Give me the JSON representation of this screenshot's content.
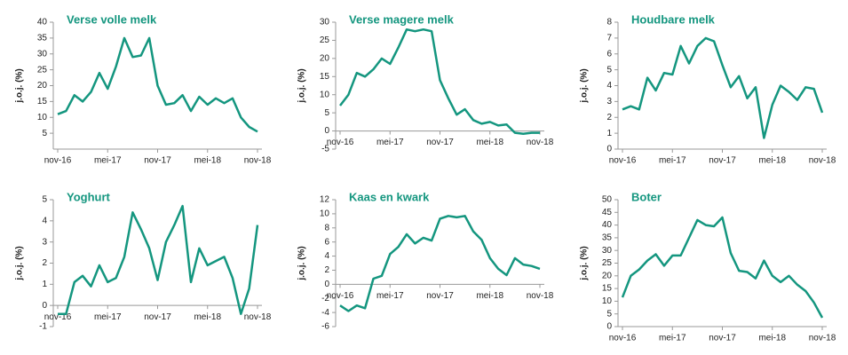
{
  "chart_data": [
    {
      "type": "line",
      "title": "Verse volle melk",
      "ylabel": "j.o.j. (%)",
      "color": "#14967f",
      "categories": [
        "nov-16",
        null,
        null,
        null,
        null,
        null,
        "mei-17",
        null,
        null,
        null,
        null,
        null,
        "nov-17",
        null,
        null,
        null,
        null,
        null,
        "mei-18",
        null,
        null,
        null,
        null,
        null,
        "nov-18"
      ],
      "values": [
        11,
        12,
        17,
        15,
        18,
        24,
        19,
        26,
        35,
        29,
        29.5,
        35,
        20,
        14,
        14.5,
        17,
        12,
        16.5,
        14,
        16,
        14.5,
        16,
        10,
        7,
        5.5
      ],
      "ylim": [
        0,
        40
      ],
      "yticks": [
        5,
        10,
        15,
        20,
        25,
        30,
        35,
        40
      ]
    },
    {
      "type": "line",
      "title": "Verse magere melk",
      "ylabel": "j.o.j. (%)",
      "color": "#14967f",
      "categories": [
        "nov-16",
        null,
        null,
        null,
        null,
        null,
        "mei-17",
        null,
        null,
        null,
        null,
        null,
        "nov-17",
        null,
        null,
        null,
        null,
        null,
        "mei-18",
        null,
        null,
        null,
        null,
        null,
        "nov-18"
      ],
      "values": [
        7,
        10,
        16,
        15,
        17,
        20,
        18.5,
        23,
        28,
        27.5,
        28,
        27.5,
        14,
        9,
        4.5,
        6,
        3,
        2,
        2.5,
        1.5,
        1.8,
        -0.5,
        -0.8,
        -0.5,
        -0.5
      ],
      "ylim": [
        -5,
        30
      ],
      "yticks": [
        -5,
        0,
        5,
        10,
        15,
        20,
        25,
        30
      ]
    },
    {
      "type": "line",
      "title": "Houdbare melk",
      "ylabel": "j.o.j. (%)",
      "color": "#14967f",
      "categories": [
        "nov-16",
        null,
        null,
        null,
        null,
        null,
        "mei-17",
        null,
        null,
        null,
        null,
        null,
        "nov-17",
        null,
        null,
        null,
        null,
        null,
        "mei-18",
        null,
        null,
        null,
        null,
        null,
        "nov-18"
      ],
      "values": [
        2.5,
        2.7,
        2.5,
        4.5,
        3.7,
        4.8,
        4.7,
        6.5,
        5.4,
        6.5,
        7,
        6.8,
        5.3,
        3.9,
        4.6,
        3.2,
        3.9,
        0.7,
        2.8,
        4,
        3.6,
        3.1,
        3.9,
        3.8,
        2.3
      ],
      "ylim": [
        0,
        8
      ],
      "yticks": [
        0,
        1,
        2,
        3,
        4,
        5,
        6,
        7,
        8
      ]
    },
    {
      "type": "line",
      "title": "Yoghurt",
      "ylabel": "j.o.j. (%)",
      "color": "#14967f",
      "categories": [
        "nov-16",
        null,
        null,
        null,
        null,
        null,
        "mei-17",
        null,
        null,
        null,
        null,
        null,
        "nov-17",
        null,
        null,
        null,
        null,
        null,
        "mei-18",
        null,
        null,
        null,
        null,
        null,
        "nov-18"
      ],
      "values": [
        -0.4,
        -0.4,
        1.1,
        1.4,
        0.9,
        1.9,
        1.1,
        1.3,
        2.3,
        4.4,
        3.6,
        2.7,
        1.2,
        3,
        3.8,
        4.7,
        1.1,
        2.7,
        1.9,
        2.1,
        2.3,
        1.3,
        -0.4,
        0.8,
        3.8
      ],
      "ylim": [
        -1,
        5
      ],
      "yticks": [
        -1,
        0,
        1,
        2,
        3,
        4,
        5
      ]
    },
    {
      "type": "line",
      "title": "Kaas en kwark",
      "ylabel": "j.o.j. (%)",
      "color": "#14967f",
      "categories": [
        "nov-16",
        null,
        null,
        null,
        null,
        null,
        "mei-17",
        null,
        null,
        null,
        null,
        null,
        "nov-17",
        null,
        null,
        null,
        null,
        null,
        "mei-18",
        null,
        null,
        null,
        null,
        null,
        "nov-18"
      ],
      "values": [
        -3,
        -3.8,
        -3,
        -3.4,
        0.8,
        1.2,
        4.3,
        5.3,
        7.1,
        5.8,
        6.6,
        6.2,
        9.3,
        9.7,
        9.5,
        9.7,
        7.5,
        6.3,
        3.7,
        2.2,
        1.3,
        3.7,
        2.8,
        2.6,
        2.2
      ],
      "ylim": [
        -6,
        12
      ],
      "yticks": [
        -6,
        -4,
        -2,
        0,
        2,
        4,
        6,
        8,
        10,
        12
      ]
    },
    {
      "type": "line",
      "title": "Boter",
      "ylabel": "j.o.j. (%)",
      "color": "#14967f",
      "categories": [
        "nov-16",
        null,
        null,
        null,
        null,
        null,
        "mei-17",
        null,
        null,
        null,
        null,
        null,
        "nov-17",
        null,
        null,
        null,
        null,
        null,
        "mei-18",
        null,
        null,
        null,
        null,
        null,
        "nov-18"
      ],
      "values": [
        11.5,
        20,
        22.5,
        26,
        28.5,
        24,
        28,
        28,
        35,
        42,
        40,
        39.5,
        43,
        29,
        22,
        21.5,
        19,
        26,
        20,
        17.5,
        20,
        16.5,
        14,
        9.5,
        3.5
      ],
      "ylim": [
        0,
        50
      ],
      "yticks": [
        0,
        5,
        10,
        15,
        20,
        25,
        30,
        35,
        40,
        45,
        50
      ]
    }
  ]
}
